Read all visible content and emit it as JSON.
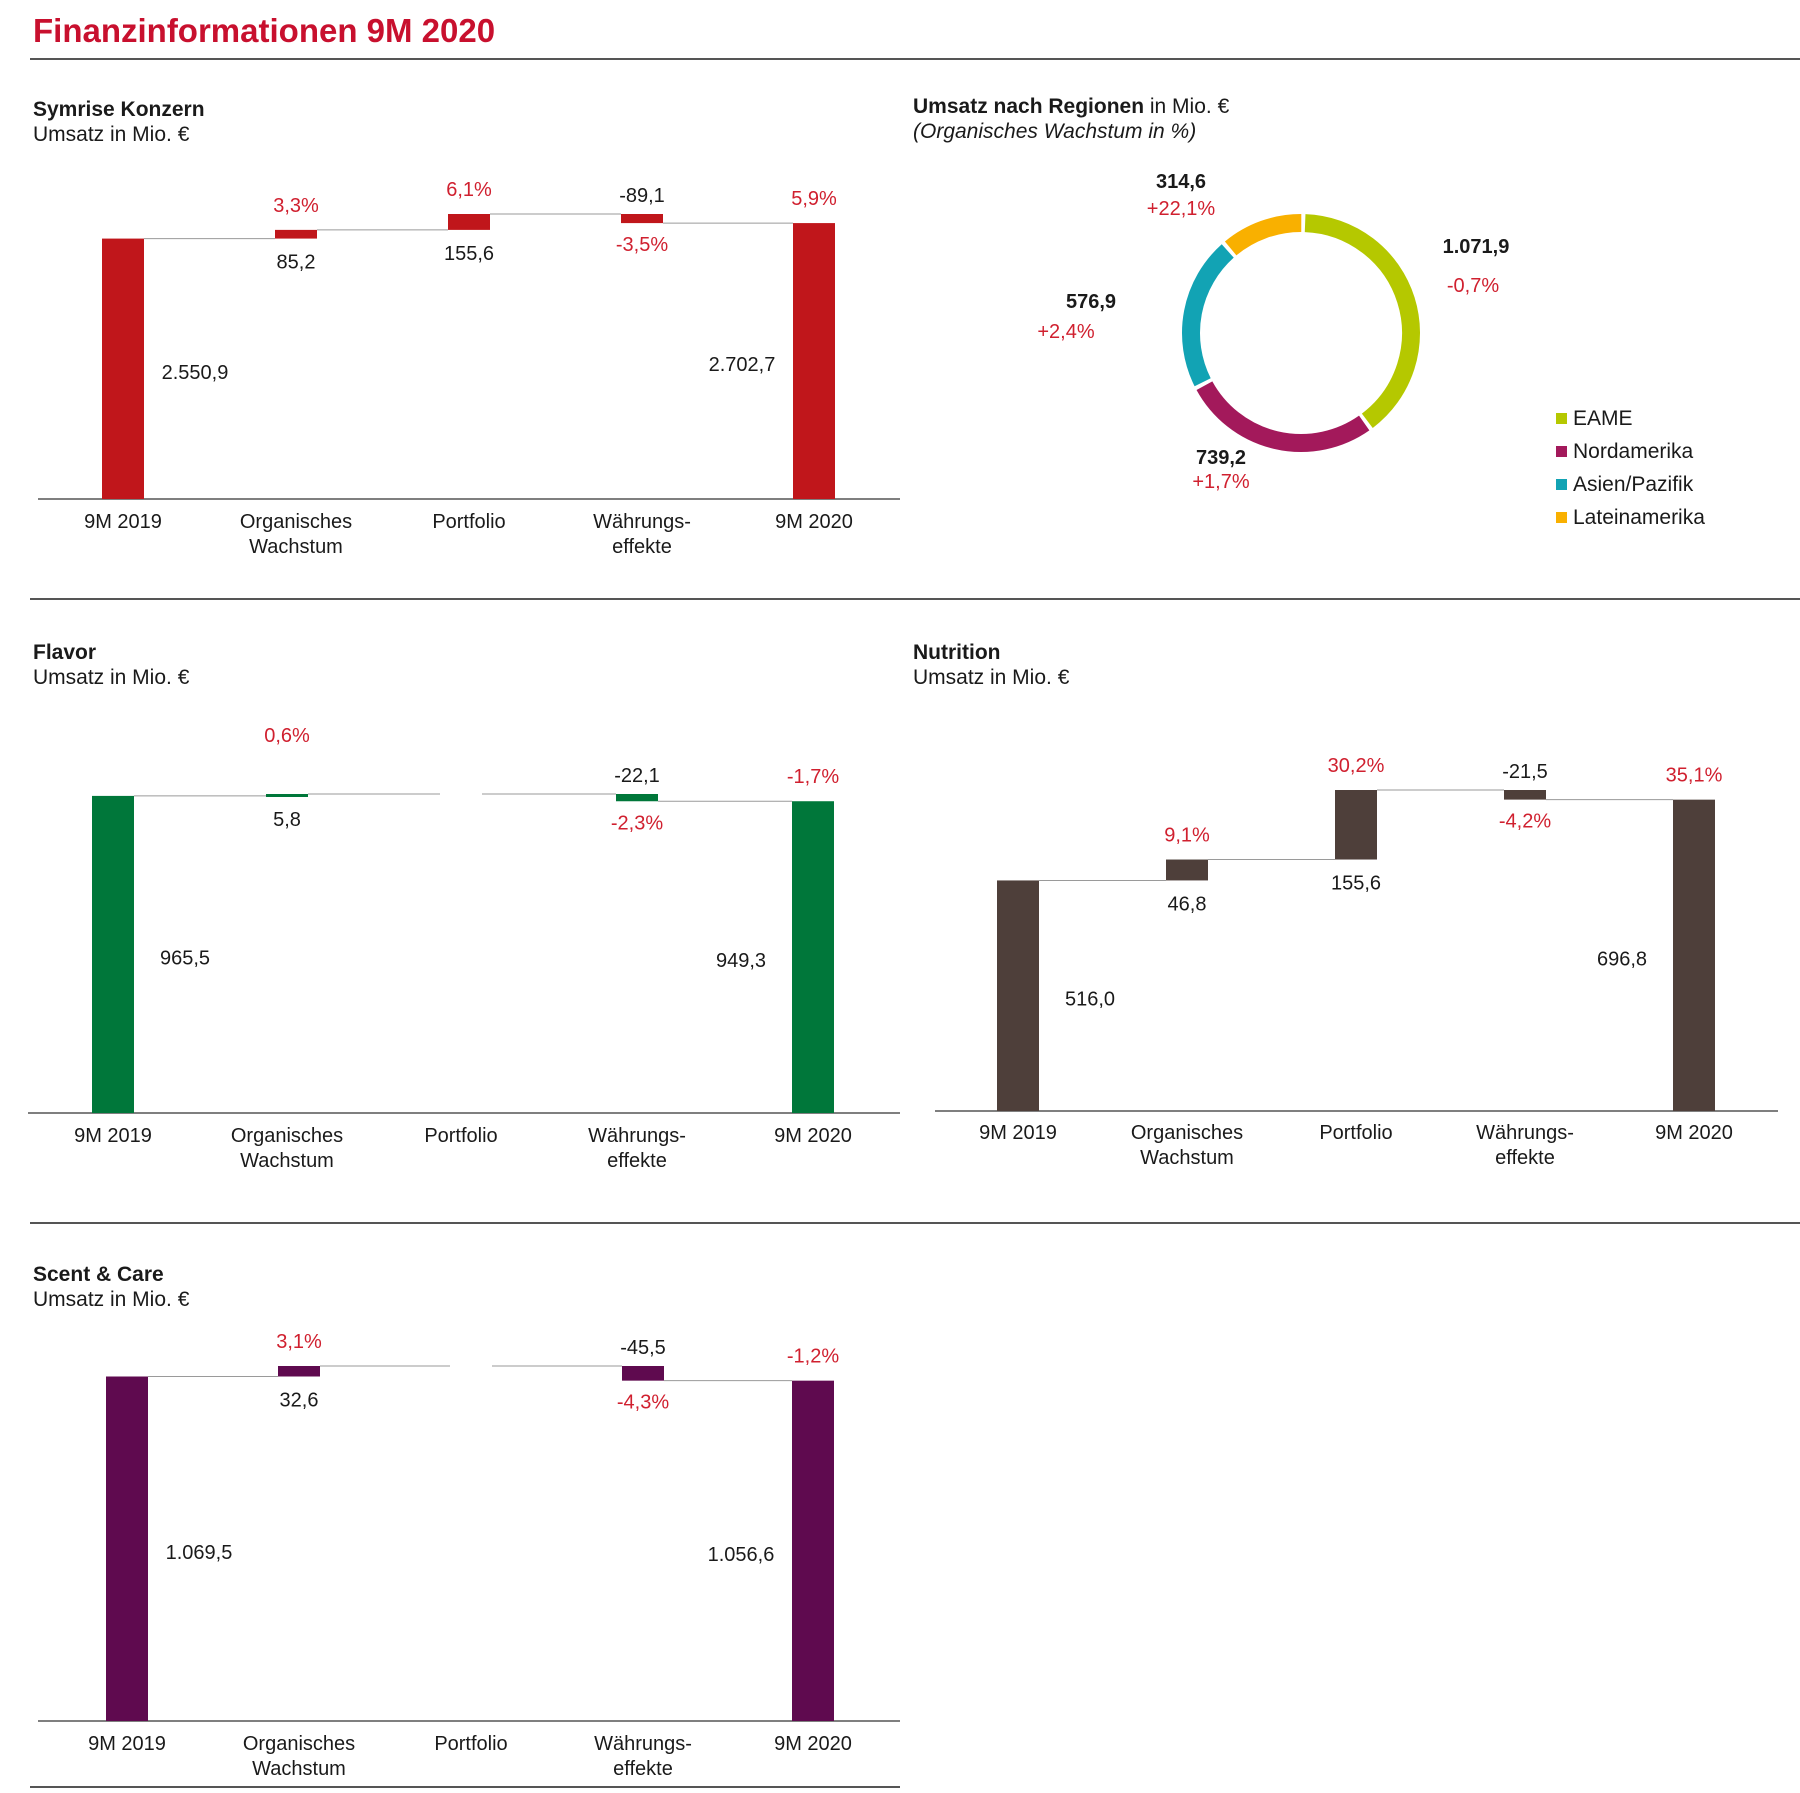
{
  "page": {
    "title": "Finanzinformationen 9M 2020"
  },
  "colors": {
    "title": "#c8102e",
    "connector": "#9a9a9a",
    "axis": "#555555",
    "pct": "#d0202f"
  },
  "charts": [
    {
      "id": "konzern",
      "title": "Symrise Konzern",
      "subtitle": "Umsatz in Mio. €",
      "color": "#c0161b",
      "chart_data": {
        "type": "bar",
        "subtype": "waterfall",
        "categories": [
          [
            "9M 2019"
          ],
          [
            "Organisches",
            "Wachstum"
          ],
          [
            "Portfolio"
          ],
          [
            "Währungs-",
            "effekte"
          ],
          [
            "9M 2020"
          ]
        ],
        "values": [
          2550.9,
          85.2,
          155.6,
          -89.1,
          2702.7
        ],
        "value_labels": [
          "2.550,9",
          "85,2",
          "155,6",
          "-89,1",
          "2.702,7"
        ],
        "pct_labels": [
          "",
          "3,3%",
          "6,1%",
          "-3,5%",
          "5,9%"
        ],
        "ylim": [
          0,
          2800
        ]
      }
    },
    {
      "id": "flavor",
      "title": "Flavor",
      "subtitle": "Umsatz in Mio. €",
      "color": "#00773a",
      "chart_data": {
        "type": "bar",
        "subtype": "waterfall",
        "categories": [
          [
            "9M 2019"
          ],
          [
            "Organisches",
            "Wachstum"
          ],
          [
            "Portfolio"
          ],
          [
            "Währungs-",
            "effekte"
          ],
          [
            "9M 2020"
          ]
        ],
        "values": [
          965.5,
          5.8,
          0,
          -22.1,
          949.3
        ],
        "value_labels": [
          "965,5",
          "5,8",
          "",
          "-22,1",
          "949,3"
        ],
        "pct_labels": [
          "",
          "0,6%",
          "",
          "-2,3%",
          "-1,7%"
        ],
        "ylim": [
          0,
          985
        ]
      }
    },
    {
      "id": "nutrition",
      "title": "Nutrition",
      "subtitle": "Umsatz in Mio. €",
      "color": "#4e3f3a",
      "chart_data": {
        "type": "bar",
        "subtype": "waterfall",
        "categories": [
          [
            "9M 2019"
          ],
          [
            "Organisches",
            "Wachstum"
          ],
          [
            "Portfolio"
          ],
          [
            "Währungs-",
            "effekte"
          ],
          [
            "9M 2020"
          ]
        ],
        "values": [
          516.0,
          46.8,
          155.6,
          -21.5,
          696.8
        ],
        "value_labels": [
          "516,0",
          "46,8",
          "155,6",
          "-21,5",
          "696,8"
        ],
        "pct_labels": [
          "",
          "9,1%",
          "30,2%",
          "-4,2%",
          "35,1%"
        ],
        "ylim": [
          0,
          720
        ]
      }
    },
    {
      "id": "scent",
      "title": "Scent & Care",
      "subtitle": "Umsatz in Mio. €",
      "color": "#5f0a4f",
      "chart_data": {
        "type": "bar",
        "subtype": "waterfall",
        "categories": [
          [
            "9M 2019"
          ],
          [
            "Organisches",
            "Wachstum"
          ],
          [
            "Portfolio"
          ],
          [
            "Währungs-",
            "effekte"
          ],
          [
            "9M 2020"
          ]
        ],
        "values": [
          1069.5,
          32.6,
          0,
          -45.5,
          1056.6
        ],
        "value_labels": [
          "1.069,5",
          "32,6",
          "",
          "-45,5",
          "1.056,6"
        ],
        "pct_labels": [
          "",
          "3,1%",
          "",
          "-4,3%",
          "-1,2%"
        ],
        "ylim": [
          0,
          1110
        ]
      }
    }
  ],
  "regions": {
    "title": "Umsatz nach Regionen",
    "title_suffix": " in Mio. €",
    "subtitle": "(Organisches Wachstum in %)",
    "chart_data": {
      "type": "pie",
      "subtype": "donut",
      "slices": [
        {
          "name": "EAME",
          "value": 1071.9,
          "value_label": "1.071,9",
          "growth": "-0,7%",
          "color": "#b5c800"
        },
        {
          "name": "Nordamerika",
          "value": 739.2,
          "value_label": "739,2",
          "growth": "+1,7%",
          "color": "#a3195b"
        },
        {
          "name": "Asien/Pazifik",
          "value": 576.9,
          "value_label": "576,9",
          "growth": "+2,4%",
          "color": "#12a3b4"
        },
        {
          "name": "Lateinamerika",
          "value": 314.6,
          "value_label": "314,6",
          "growth": "+22,1%",
          "color": "#f9b000"
        }
      ],
      "legend": "right"
    }
  }
}
